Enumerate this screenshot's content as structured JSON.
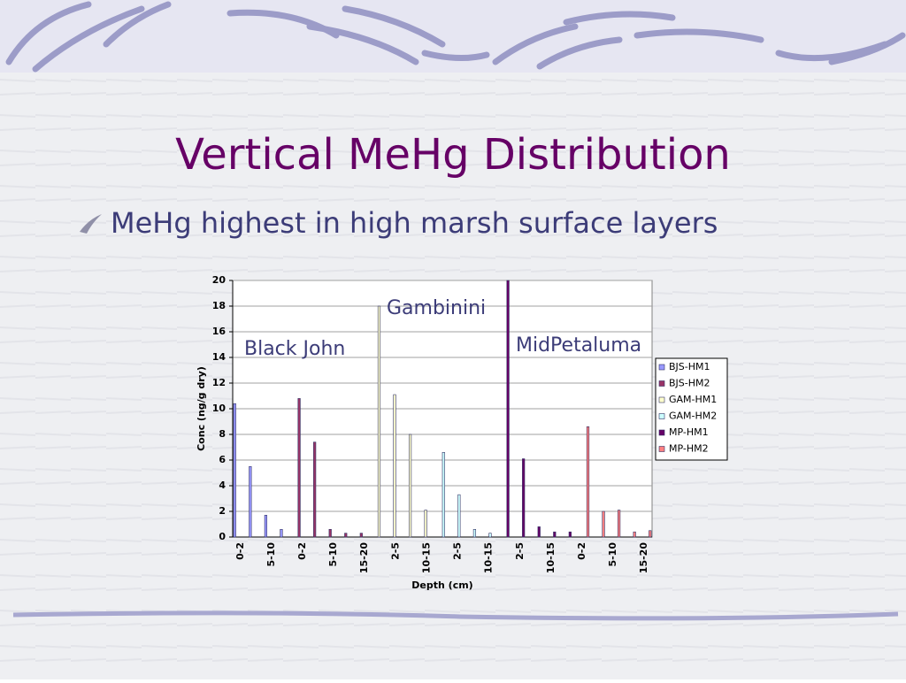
{
  "slide": {
    "title": "Vertical MeHg Distribution",
    "bullet": "MeHg highest in high marsh surface layers"
  },
  "chart_data": {
    "type": "bar",
    "categories": [
      "0-2",
      null,
      "5-10",
      null,
      "0-2",
      null,
      "5-10",
      null,
      "15-20",
      null,
      "2-5",
      null,
      "10-15",
      null,
      "2-5",
      null,
      "10-15",
      null,
      "2-5",
      null,
      "10-15",
      null,
      "0-2",
      null,
      "5-10",
      null,
      "15-20"
    ],
    "series": [
      {
        "name": "BJS-HM1",
        "color": "#9999ff",
        "values": [
          10.4,
          5.5,
          1.7,
          0.6,
          null,
          null,
          null,
          null,
          null,
          null,
          null,
          null,
          null,
          null,
          null,
          null,
          null,
          null,
          null,
          null,
          null,
          null,
          null,
          null,
          null,
          null,
          null
        ]
      },
      {
        "name": "BJS-HM2",
        "color": "#993366",
        "values": [
          null,
          null,
          null,
          null,
          10.8,
          7.4,
          0.6,
          0.3,
          0.3,
          null,
          null,
          null,
          null,
          null,
          null,
          null,
          null,
          null,
          null,
          null,
          null,
          null,
          null,
          null,
          null,
          null,
          null
        ]
      },
      {
        "name": "GAM-HM1",
        "color": "#ffffcc",
        "values": [
          null,
          null,
          null,
          null,
          null,
          null,
          null,
          null,
          null,
          18,
          11.1,
          8,
          2.1,
          null,
          null,
          null,
          null,
          null,
          null,
          null,
          null,
          null,
          null,
          null,
          null,
          null,
          null
        ]
      },
      {
        "name": "GAM-HM2",
        "color": "#ccffff",
        "values": [
          null,
          null,
          null,
          null,
          null,
          null,
          null,
          null,
          null,
          null,
          null,
          null,
          null,
          6.6,
          3.3,
          0.6,
          0.3,
          null,
          null,
          null,
          null,
          null,
          null,
          null,
          null,
          null,
          null
        ]
      },
      {
        "name": "MP-HM1",
        "color": "#660066",
        "values": [
          null,
          null,
          null,
          null,
          null,
          null,
          null,
          null,
          null,
          null,
          null,
          null,
          null,
          null,
          null,
          null,
          null,
          20,
          6.1,
          0.8,
          0.4,
          0.4,
          null,
          null,
          null,
          null,
          null
        ]
      },
      {
        "name": "MP-HM2",
        "color": "#ff8080",
        "values": [
          null,
          null,
          null,
          null,
          null,
          null,
          null,
          null,
          null,
          null,
          null,
          null,
          null,
          null,
          null,
          null,
          null,
          null,
          null,
          null,
          null,
          null,
          8.6,
          2.0,
          2.1,
          0.4,
          0.5
        ]
      }
    ],
    "ylim": [
      0,
      20
    ],
    "yticks": [
      0,
      2,
      4,
      6,
      8,
      10,
      12,
      14,
      16,
      18,
      20
    ],
    "grid": true,
    "x_label": "Depth (cm)",
    "y_label": "Conc (ng/g dry)",
    "legend": "right",
    "annotations": [
      "Black John",
      "Gambinini",
      "MidPetaluma"
    ]
  }
}
